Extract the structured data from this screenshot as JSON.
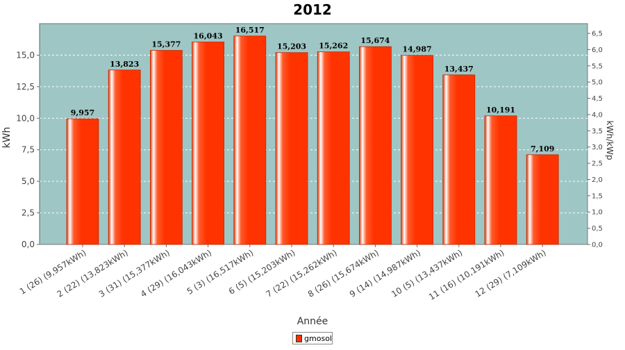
{
  "chart_data": {
    "type": "bar",
    "title": "2012",
    "xlabel": "Année",
    "ylabel": "kWh",
    "y2label": "kWh/kWp",
    "ylim": [
      0,
      17.5
    ],
    "y2lim": [
      0,
      6.8
    ],
    "yticks": [
      "0,0",
      "2,5",
      "5,0",
      "7,5",
      "10,0",
      "12,5",
      "15,0"
    ],
    "y2ticks": [
      "0,0",
      "0,5",
      "1,0",
      "1,5",
      "2,0",
      "2,5",
      "3,0",
      "3,5",
      "4,0",
      "4,5",
      "5,0",
      "5,5",
      "6,0",
      "6,5"
    ],
    "grid": true,
    "legend_position": "bottom",
    "colors": {
      "bar": "#ff3300",
      "plot_bg": "#9ec6c4",
      "grid": "#ffffff"
    },
    "categories": [
      "1 (26)  (9,957kWh)",
      "2 (22)  (13,823kWh)",
      "3 (31)  (15,377kWh)",
      "4 (29)  (16,043kWh)",
      "5 (3)  (16,517kWh)",
      "6 (5)  (15,203kWh)",
      "7 (22)  (15,262kWh)",
      "8 (26)  (15,674kWh)",
      "9 (14)  (14,987kWh)",
      "10 (5)  (13,437kWh)",
      "11 (16)  (10,191kWh)",
      "12 (29)  (7,109kWh)"
    ],
    "series": [
      {
        "name": "gmosol",
        "values": [
          9.957,
          13.823,
          15.377,
          16.043,
          16.517,
          15.203,
          15.262,
          15.674,
          14.987,
          13.437,
          10.191,
          7.109
        ],
        "labels": [
          "9,957",
          "13,823",
          "15,377",
          "16,043",
          "16,517",
          "15,203",
          "15,262",
          "15,674",
          "14,987",
          "13,437",
          "10,191",
          "7,109"
        ]
      }
    ]
  }
}
